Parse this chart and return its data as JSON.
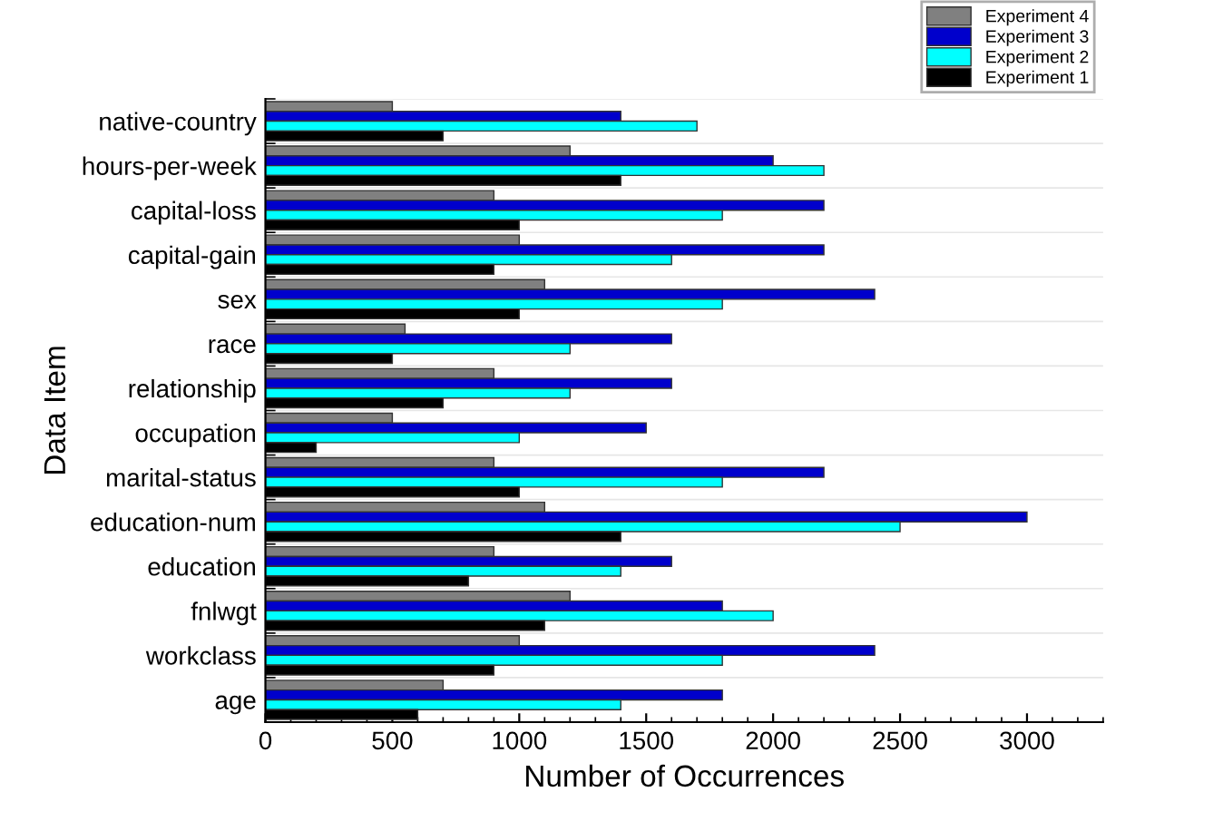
{
  "chart_data": {
    "type": "bar",
    "orientation": "horizontal",
    "xlabel": "Number of Occurrences",
    "ylabel": "Data Item",
    "categories": [
      "native-country",
      "hours-per-week",
      "capital-loss",
      "capital-gain",
      "sex",
      "race",
      "relationship",
      "occupation",
      "marital-status",
      "education-num",
      "education",
      "fnlwgt",
      "workclass",
      "age"
    ],
    "series": [
      {
        "name": "Experiment 4",
        "color": "#808080",
        "values": [
          500,
          1200,
          900,
          1000,
          1100,
          550,
          900,
          500,
          900,
          1100,
          900,
          1200,
          1000,
          700
        ]
      },
      {
        "name": "Experiment 3",
        "color": "#0000cc",
        "values": [
          1400,
          2000,
          2200,
          2200,
          2400,
          1600,
          1600,
          1500,
          2200,
          3000,
          1600,
          1800,
          2400,
          1800
        ]
      },
      {
        "name": "Experiment 2",
        "color": "#00ffff",
        "values": [
          1700,
          2200,
          1800,
          1600,
          1800,
          1200,
          1200,
          1000,
          1800,
          2500,
          1400,
          2000,
          1800,
          1400
        ]
      },
      {
        "name": "Experiment 1",
        "color": "#000000",
        "values": [
          700,
          1400,
          1000,
          900,
          1000,
          500,
          700,
          200,
          1000,
          1400,
          800,
          1100,
          900,
          600
        ]
      }
    ],
    "xlim": [
      0,
      3300
    ],
    "xticks": [
      0,
      500,
      1000,
      1500,
      2000,
      2500,
      3000
    ],
    "grid": "y",
    "legend": "top right"
  }
}
